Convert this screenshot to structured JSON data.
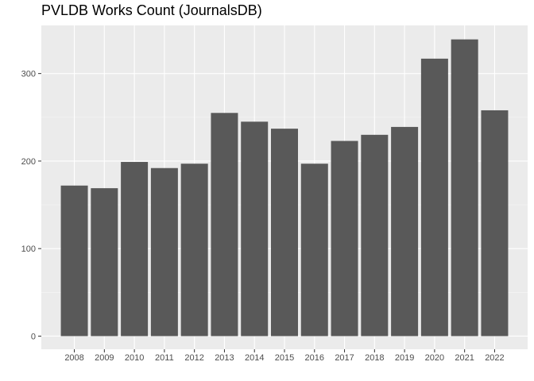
{
  "chart_data": {
    "type": "bar",
    "title": "PVLDB Works Count (JournalsDB)",
    "xlabel": "",
    "ylabel": "",
    "categories": [
      "2008",
      "2009",
      "2010",
      "2011",
      "2012",
      "2013",
      "2014",
      "2015",
      "2016",
      "2017",
      "2018",
      "2019",
      "2020",
      "2021",
      "2022"
    ],
    "values": [
      172,
      169,
      199,
      192,
      197,
      255,
      245,
      237,
      197,
      223,
      230,
      239,
      317,
      339,
      258
    ],
    "ylim": [
      -15,
      355
    ],
    "yticks": [
      0,
      100,
      200,
      300
    ],
    "grid": true,
    "legend": "none",
    "colors": {
      "bar": "#595959",
      "panel": "#ebebeb",
      "grid_major": "#ffffff",
      "grid_minor": "#f5f5f5",
      "tick_text": "#4d4d4d"
    }
  }
}
